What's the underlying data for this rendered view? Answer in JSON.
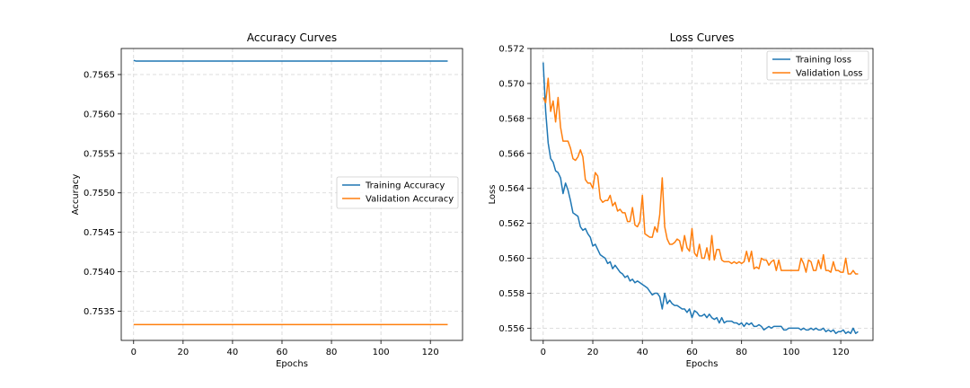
{
  "colors": {
    "training": "#1f77b4",
    "validation": "#ff7f0e",
    "grid": "#d3d3d3",
    "axis": "#000000"
  },
  "chart_data": [
    {
      "type": "line",
      "title": "Accuracy Curves",
      "xlabel": "Epochs",
      "ylabel": "Accuracy",
      "xlim": [
        -5,
        133
      ],
      "ylim": [
        0.75313,
        0.75683
      ],
      "grid": true,
      "legend": "center-right",
      "xticks": [
        0,
        20,
        40,
        60,
        80,
        100,
        120
      ],
      "xtick_labels": [
        "0",
        "20",
        "40",
        "60",
        "80",
        "100",
        "120"
      ],
      "yticks": [
        0.7535,
        0.754,
        0.7545,
        0.755,
        0.7555,
        0.756,
        0.7565
      ],
      "ytick_labels": [
        "0.7535",
        "0.7540",
        "0.7545",
        "0.7550",
        "0.7555",
        "0.7560",
        "0.7565"
      ],
      "series": [
        {
          "name": "Training Accuracy",
          "color": "#1f77b4",
          "x": [
            0,
            1,
            127
          ],
          "y": [
            0.75668,
            0.75667,
            0.75667
          ]
        },
        {
          "name": "Validation Accuracy",
          "color": "#ff7f0e",
          "x": [
            0,
            127
          ],
          "y": [
            0.75333,
            0.75333
          ]
        }
      ]
    },
    {
      "type": "line",
      "title": "Loss Curves",
      "xlabel": "Epochs",
      "ylabel": "Loss",
      "xlim": [
        -5,
        133
      ],
      "ylim": [
        0.5553,
        0.572
      ],
      "grid": true,
      "legend": "top-right",
      "xticks": [
        0,
        20,
        40,
        60,
        80,
        100,
        120
      ],
      "xtick_labels": [
        "0",
        "20",
        "40",
        "60",
        "80",
        "100",
        "120"
      ],
      "yticks": [
        0.556,
        0.558,
        0.56,
        0.562,
        0.564,
        0.566,
        0.568,
        0.57,
        0.572
      ],
      "ytick_labels": [
        "0.556",
        "0.558",
        "0.560",
        "0.562",
        "0.564",
        "0.566",
        "0.568",
        "0.570",
        "0.572"
      ],
      "series": [
        {
          "name": "Training loss",
          "color": "#1f77b4",
          "x": [
            0,
            1,
            2,
            3,
            4,
            5,
            6,
            7,
            8,
            9,
            10,
            11,
            12,
            13,
            14,
            15,
            16,
            17,
            18,
            19,
            20,
            21,
            22,
            23,
            24,
            25,
            26,
            27,
            28,
            29,
            30,
            31,
            32,
            33,
            34,
            35,
            36,
            37,
            38,
            39,
            40,
            41,
            42,
            43,
            44,
            45,
            46,
            47,
            48,
            49,
            50,
            51,
            52,
            53,
            54,
            55,
            56,
            57,
            58,
            59,
            60,
            61,
            62,
            63,
            64,
            65,
            66,
            67,
            68,
            69,
            70,
            71,
            72,
            73,
            74,
            75,
            76,
            77,
            78,
            79,
            80,
            81,
            82,
            83,
            84,
            85,
            86,
            87,
            88,
            89,
            90,
            91,
            92,
            93,
            94,
            95,
            96,
            97,
            98,
            99,
            100,
            101,
            102,
            103,
            104,
            105,
            106,
            107,
            108,
            109,
            110,
            111,
            112,
            113,
            114,
            115,
            116,
            117,
            118,
            119,
            120,
            121,
            122,
            123,
            124,
            125,
            126,
            127
          ],
          "y": [
            0.5712,
            0.5684,
            0.5666,
            0.5657,
            0.5655,
            0.565,
            0.5649,
            0.5646,
            0.5637,
            0.5643,
            0.5639,
            0.5633,
            0.5626,
            0.5625,
            0.5624,
            0.5618,
            0.5616,
            0.5617,
            0.5614,
            0.5612,
            0.5607,
            0.5608,
            0.5605,
            0.5602,
            0.5601,
            0.56,
            0.5597,
            0.5598,
            0.5594,
            0.5596,
            0.5594,
            0.5592,
            0.5591,
            0.5589,
            0.559,
            0.5587,
            0.5588,
            0.5586,
            0.5587,
            0.5586,
            0.5585,
            0.5584,
            0.5583,
            0.5581,
            0.5579,
            0.558,
            0.558,
            0.5578,
            0.5571,
            0.558,
            0.5574,
            0.5576,
            0.5574,
            0.5573,
            0.5573,
            0.5572,
            0.5571,
            0.5571,
            0.5569,
            0.5571,
            0.5566,
            0.557,
            0.5569,
            0.5567,
            0.5567,
            0.5568,
            0.5566,
            0.5568,
            0.5566,
            0.5565,
            0.5566,
            0.5563,
            0.5566,
            0.5563,
            0.5564,
            0.5564,
            0.5564,
            0.5563,
            0.5563,
            0.5562,
            0.5563,
            0.5561,
            0.5563,
            0.5562,
            0.5563,
            0.5561,
            0.5561,
            0.5562,
            0.5561,
            0.5559,
            0.556,
            0.5561,
            0.556,
            0.5561,
            0.5561,
            0.5561,
            0.5561,
            0.5559,
            0.5559,
            0.556,
            0.556,
            0.556,
            0.556,
            0.556,
            0.5559,
            0.556,
            0.5559,
            0.5559,
            0.556,
            0.5559,
            0.556,
            0.5559,
            0.5559,
            0.556,
            0.5558,
            0.5559,
            0.5558,
            0.5559,
            0.5557,
            0.5558,
            0.5558,
            0.5559,
            0.5557,
            0.5558,
            0.5557,
            0.556,
            0.5557,
            0.5558
          ]
        },
        {
          "name": "Validation Loss",
          "color": "#ff7f0e",
          "x": [
            0,
            1,
            2,
            3,
            4,
            5,
            6,
            7,
            8,
            9,
            10,
            11,
            12,
            13,
            14,
            15,
            16,
            17,
            18,
            19,
            20,
            21,
            22,
            23,
            24,
            25,
            26,
            27,
            28,
            29,
            30,
            31,
            32,
            33,
            34,
            35,
            36,
            37,
            38,
            39,
            40,
            41,
            42,
            43,
            44,
            45,
            46,
            47,
            48,
            49,
            50,
            51,
            52,
            53,
            54,
            55,
            56,
            57,
            58,
            59,
            60,
            61,
            62,
            63,
            64,
            65,
            66,
            67,
            68,
            69,
            70,
            71,
            72,
            73,
            74,
            75,
            76,
            77,
            78,
            79,
            80,
            81,
            82,
            83,
            84,
            85,
            86,
            87,
            88,
            89,
            90,
            91,
            92,
            93,
            94,
            95,
            96,
            97,
            98,
            99,
            100,
            101,
            102,
            103,
            104,
            105,
            106,
            107,
            108,
            109,
            110,
            111,
            112,
            113,
            114,
            115,
            116,
            117,
            118,
            119,
            120,
            121,
            122,
            123,
            124,
            125,
            126,
            127
          ],
          "y": [
            0.5692,
            0.5689,
            0.5703,
            0.5684,
            0.569,
            0.5678,
            0.5692,
            0.5675,
            0.5667,
            0.5667,
            0.5667,
            0.5663,
            0.5657,
            0.5656,
            0.5658,
            0.5662,
            0.5658,
            0.5645,
            0.5643,
            0.5643,
            0.564,
            0.5649,
            0.5647,
            0.5634,
            0.5632,
            0.5633,
            0.5633,
            0.5636,
            0.563,
            0.5632,
            0.5627,
            0.5628,
            0.5626,
            0.5626,
            0.5621,
            0.5621,
            0.5629,
            0.5619,
            0.5618,
            0.5621,
            0.5636,
            0.5614,
            0.5613,
            0.5612,
            0.5612,
            0.5618,
            0.5615,
            0.5625,
            0.5646,
            0.5618,
            0.5611,
            0.5608,
            0.5608,
            0.5609,
            0.5611,
            0.561,
            0.5604,
            0.5613,
            0.5606,
            0.5604,
            0.5617,
            0.5603,
            0.5601,
            0.5608,
            0.56,
            0.56,
            0.5606,
            0.5599,
            0.5613,
            0.5599,
            0.5605,
            0.5605,
            0.5599,
            0.5598,
            0.5598,
            0.5598,
            0.5597,
            0.5598,
            0.5597,
            0.5598,
            0.5597,
            0.5598,
            0.5604,
            0.5598,
            0.5604,
            0.5594,
            0.5595,
            0.5594,
            0.56,
            0.5599,
            0.5599,
            0.5596,
            0.5598,
            0.5599,
            0.5593,
            0.5599,
            0.5593,
            0.5593,
            0.5593,
            0.5593,
            0.5593,
            0.5593,
            0.5593,
            0.5593,
            0.56,
            0.5597,
            0.5592,
            0.5599,
            0.5598,
            0.5593,
            0.5593,
            0.5599,
            0.5594,
            0.5602,
            0.5593,
            0.5593,
            0.5592,
            0.5598,
            0.5593,
            0.5593,
            0.5592,
            0.5592,
            0.56,
            0.5591,
            0.5591,
            0.5593,
            0.5591,
            0.5591
          ]
        }
      ]
    }
  ]
}
